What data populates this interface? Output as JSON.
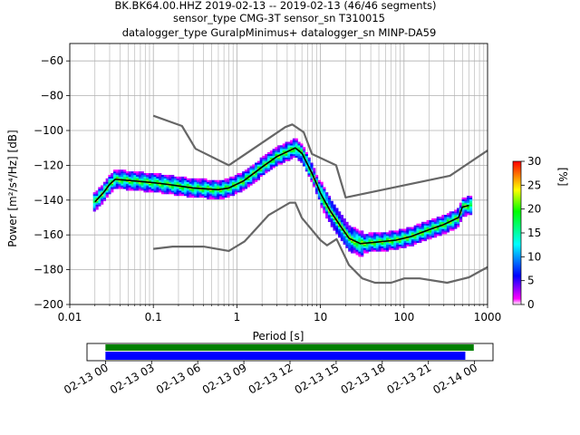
{
  "chart_data": [
    {
      "type": "heatmap",
      "title_lines": [
        "BK.BK64.00.HHZ   2019-02-13 -- 2019-02-13  (46/46 segments)",
        "sensor_type CMG-3T sensor_sn T310015",
        "datalogger_type GuralpMinimus+ datalogger_sn MINP-DA59"
      ],
      "xlabel": "Period [s]",
      "ylabel": "Power [m²/s⁴/Hz] [dB]",
      "x_scale": "log",
      "xlim": [
        0.01,
        1000
      ],
      "ylim": [
        -200,
        -50
      ],
      "x_ticks": [
        {
          "v": 0.01,
          "label": "0.01"
        },
        {
          "v": 0.1,
          "label": "0.1"
        },
        {
          "v": 1,
          "label": "1"
        },
        {
          "v": 10,
          "label": "10"
        },
        {
          "v": 100,
          "label": "100"
        },
        {
          "v": 1000,
          "label": "1000"
        }
      ],
      "y_ticks": [
        {
          "v": -60,
          "label": "−60"
        },
        {
          "v": -80,
          "label": "−80"
        },
        {
          "v": -100,
          "label": "−100"
        },
        {
          "v": -120,
          "label": "−120"
        },
        {
          "v": -140,
          "label": "−140"
        },
        {
          "v": -160,
          "label": "−160"
        },
        {
          "v": -180,
          "label": "−180"
        },
        {
          "v": -200,
          "label": "−200"
        }
      ],
      "grid": true,
      "colorbar": {
        "label": "[%]",
        "range": [
          0,
          30
        ],
        "ticks": [
          {
            "v": 0,
            "label": "0"
          },
          {
            "v": 5,
            "label": "5"
          },
          {
            "v": 10,
            "label": "10"
          },
          {
            "v": 15,
            "label": "15"
          },
          {
            "v": 20,
            "label": "20"
          },
          {
            "v": 25,
            "label": "25"
          },
          {
            "v": 30,
            "label": "30"
          }
        ],
        "colors": [
          "#ffffff",
          "#ff00ff",
          "#0000ff",
          "#00ffff",
          "#00ff00",
          "#ffff00",
          "#ff8000",
          "#ff0000"
        ]
      },
      "series": [
        {
          "role": "noise-model-high",
          "color": "#666666",
          "x": [
            0.1,
            0.22,
            0.32,
            0.8,
            3.8,
            4.6,
            6.3,
            7.9,
            15.4,
            20,
            354.8,
            1000
          ],
          "y": [
            -91.5,
            -97.4,
            -110.5,
            -120,
            -98,
            -96.5,
            -101,
            -113.5,
            -120,
            -138.5,
            -126,
            -111.5
          ]
        },
        {
          "role": "noise-model-low",
          "color": "#666666",
          "x": [
            0.1,
            0.17,
            0.4,
            0.8,
            1.24,
            2.4,
            4.3,
            5.0,
            6.0,
            10,
            12,
            15.6,
            21.9,
            31.6,
            45,
            70,
            101,
            154,
            328,
            600,
            1000
          ],
          "y": [
            -168,
            -166.7,
            -166.7,
            -169.2,
            -163.7,
            -148.6,
            -141.5,
            -141.5,
            -150.2,
            -163,
            -166,
            -162.4,
            -177.3,
            -185,
            -187.5,
            -187.5,
            -185,
            -185,
            -187.5,
            -184.4,
            -178.5
          ]
        },
        {
          "role": "mode",
          "color": "#000000",
          "x": [
            0.02,
            0.025,
            0.03,
            0.035,
            0.06,
            0.1,
            0.15,
            0.3,
            0.6,
            0.8,
            1.2,
            2,
            3,
            5,
            6,
            8,
            10,
            13,
            18,
            22,
            30,
            50,
            80,
            120,
            200,
            300,
            450,
            500,
            600
          ],
          "y": [
            -141,
            -136,
            -131,
            -128,
            -129,
            -130,
            -131,
            -133,
            -134,
            -133,
            -129,
            -121,
            -115,
            -110,
            -113,
            -125,
            -136,
            -146,
            -156,
            -162,
            -165,
            -164,
            -163,
            -161,
            -157,
            -154,
            -150,
            -144,
            -143
          ]
        }
      ]
    },
    {
      "type": "timeline",
      "tick_labels": [
        "02-13 00",
        "02-13 03",
        "02-13 06",
        "02-13 09",
        "02-13 12",
        "02-13 15",
        "02-13 18",
        "02-13 21",
        "02-14 00"
      ],
      "range_hours": [
        -1.2,
        25.2
      ],
      "bars": [
        {
          "role": "data-available",
          "color": "#008000",
          "start_hour": 0,
          "end_hour": 23.95
        },
        {
          "role": "segments-used",
          "color": "#0000ff",
          "start_hour": 0,
          "end_hour": 23.4
        }
      ]
    }
  ]
}
